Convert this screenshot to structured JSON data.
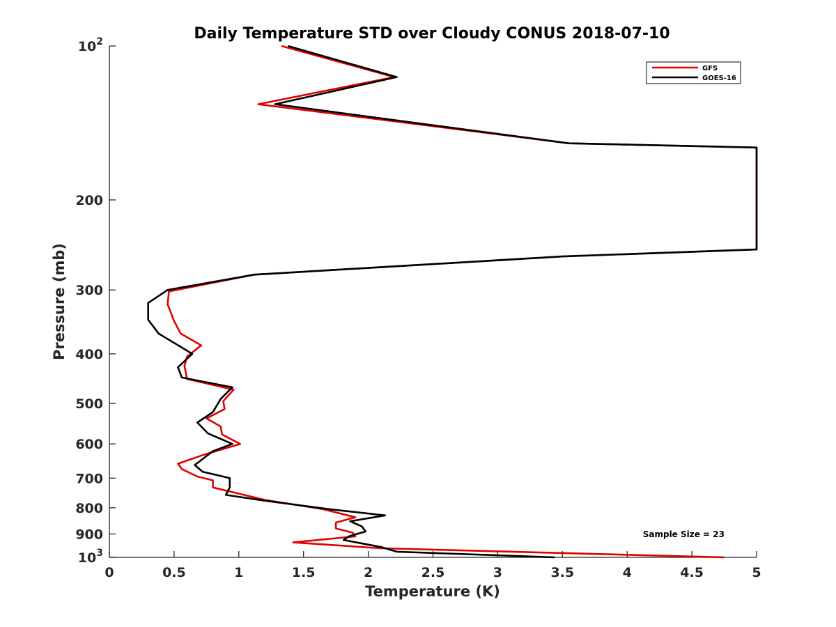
{
  "chart_data": {
    "type": "line",
    "title": "Daily Temperature STD over Cloudy CONUS 2018-07-10",
    "xlabel": "Temperature (K)",
    "ylabel": "Pressure (mb)",
    "xlim": [
      0,
      5
    ],
    "ylim": [
      100,
      1000
    ],
    "y_scale": "log",
    "y_reversed": true,
    "grid": false,
    "legend_position": "top-right",
    "x_ticks": [
      0,
      0.5,
      1,
      1.5,
      2,
      2.5,
      3,
      3.5,
      4,
      4.5,
      5
    ],
    "x_tick_labels": [
      "0",
      "0.5",
      "1",
      "1.5",
      "2",
      "2.5",
      "3",
      "3.5",
      "4",
      "4.5",
      "5"
    ],
    "y_ticks": [
      100,
      200,
      300,
      400,
      500,
      600,
      700,
      800,
      900,
      1000
    ],
    "y_tick_labels": [
      {
        "base": "10",
        "exp": "2"
      },
      {
        "base": "200",
        "exp": ""
      },
      {
        "base": "300",
        "exp": ""
      },
      {
        "base": "400",
        "exp": ""
      },
      {
        "base": "500",
        "exp": ""
      },
      {
        "base": "600",
        "exp": ""
      },
      {
        "base": "700",
        "exp": ""
      },
      {
        "base": "800",
        "exp": ""
      },
      {
        "base": "900",
        "exp": ""
      },
      {
        "base": "10",
        "exp": "3"
      }
    ],
    "annotation": "Sample Size = 23",
    "series": [
      {
        "name": "GFS",
        "color": "#e00000",
        "points": [
          [
            1.33,
            100
          ],
          [
            2.2,
            115
          ],
          [
            1.15,
            130
          ],
          [
            3.55,
            155
          ],
          [
            5.0,
            158
          ],
          [
            5.0,
            250
          ],
          [
            3.5,
            258
          ],
          [
            1.12,
            280
          ],
          [
            0.46,
            302
          ],
          [
            0.45,
            320
          ],
          [
            0.5,
            345
          ],
          [
            0.55,
            365
          ],
          [
            0.71,
            385
          ],
          [
            0.6,
            405
          ],
          [
            0.58,
            422
          ],
          [
            0.6,
            448
          ],
          [
            0.96,
            470
          ],
          [
            0.88,
            495
          ],
          [
            0.89,
            513
          ],
          [
            0.75,
            535
          ],
          [
            0.86,
            555
          ],
          [
            0.87,
            575
          ],
          [
            1.01,
            600
          ],
          [
            0.73,
            630
          ],
          [
            0.53,
            656
          ],
          [
            0.56,
            672
          ],
          [
            0.68,
            695
          ],
          [
            0.8,
            707
          ],
          [
            0.8,
            730
          ],
          [
            1.2,
            772
          ],
          [
            1.65,
            805
          ],
          [
            1.9,
            835
          ],
          [
            1.75,
            855
          ],
          [
            1.75,
            878
          ],
          [
            1.88,
            895
          ],
          [
            1.9,
            910
          ],
          [
            1.42,
            935
          ],
          [
            2.1,
            960
          ],
          [
            4.75,
            1000
          ]
        ]
      },
      {
        "name": "GOES-16",
        "color": "#000000",
        "points": [
          [
            1.38,
            100
          ],
          [
            2.22,
            115
          ],
          [
            1.28,
            130
          ],
          [
            3.55,
            155
          ],
          [
            5.0,
            158
          ],
          [
            5.0,
            250
          ],
          [
            3.5,
            258
          ],
          [
            1.12,
            280
          ],
          [
            0.45,
            300
          ],
          [
            0.3,
            318
          ],
          [
            0.3,
            343
          ],
          [
            0.38,
            365
          ],
          [
            0.64,
            400
          ],
          [
            0.53,
            425
          ],
          [
            0.56,
            445
          ],
          [
            0.95,
            465
          ],
          [
            0.86,
            490
          ],
          [
            0.8,
            520
          ],
          [
            0.68,
            545
          ],
          [
            0.76,
            572
          ],
          [
            0.95,
            600
          ],
          [
            0.8,
            620
          ],
          [
            0.66,
            660
          ],
          [
            0.72,
            680
          ],
          [
            0.93,
            700
          ],
          [
            0.93,
            730
          ],
          [
            0.9,
            755
          ],
          [
            1.2,
            775
          ],
          [
            1.7,
            805
          ],
          [
            2.13,
            828
          ],
          [
            1.86,
            850
          ],
          [
            1.95,
            870
          ],
          [
            1.98,
            890
          ],
          [
            1.85,
            910
          ],
          [
            1.81,
            925
          ],
          [
            2.1,
            955
          ],
          [
            2.22,
            975
          ],
          [
            3.44,
            1000
          ]
        ]
      }
    ]
  }
}
